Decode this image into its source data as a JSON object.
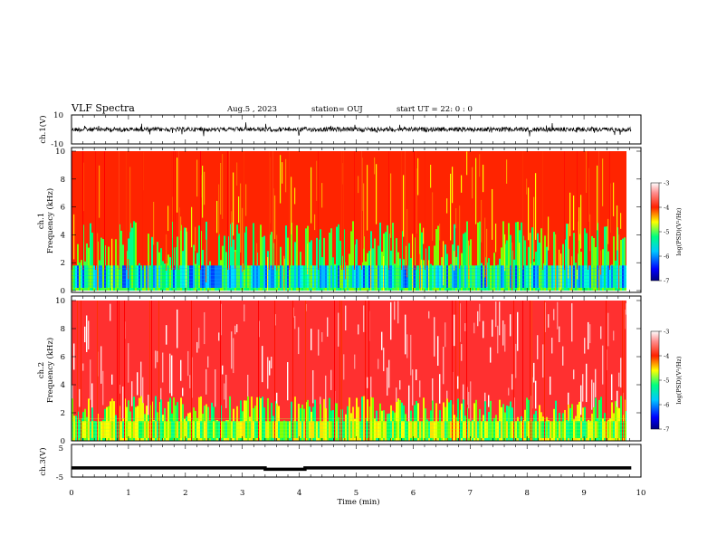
{
  "header": {
    "title": "VLF Spectra",
    "date": "Aug.5 , 2023",
    "station": "station= OUJ",
    "start_ut": "start UT = 22: 0 : 0"
  },
  "chart_data": [
    {
      "type": "line",
      "panel": "ch1-waveform",
      "ylabel": "ch.1(V)",
      "yticks": [
        "10",
        "-10"
      ],
      "ylim": [
        -10,
        10
      ],
      "x_range": [
        0,
        10
      ],
      "colors": {
        "line": "#000000"
      }
    },
    {
      "type": "heatmap",
      "panel": "ch1-spectrogram",
      "ylabel": "ch.1\nFrequency (kHz)",
      "ylabel_lines": [
        "ch.1",
        "Frequency (kHz)"
      ],
      "yticks": [
        "0",
        "2",
        "4",
        "6",
        "8",
        "10"
      ],
      "ylim": [
        0,
        10
      ],
      "x_range": [
        0,
        9.83
      ],
      "colorbar": {
        "label": "log(PSD)(V²/Hz)",
        "ticks": [
          "-3",
          "-4",
          "-5",
          "-6",
          "-7"
        ],
        "range": [
          -7,
          -3
        ]
      }
    },
    {
      "type": "heatmap",
      "panel": "ch2-spectrogram",
      "ylabel": "ch.2\nFrequency (kHz)",
      "ylabel_lines": [
        "ch.2",
        "Frequency (kHz)"
      ],
      "yticks": [
        "0",
        "2",
        "4",
        "6",
        "8",
        "10"
      ],
      "ylim": [
        0,
        10
      ],
      "x_range": [
        0,
        9.83
      ],
      "colorbar": {
        "label": "log(PSD)(V²/Hz)",
        "ticks": [
          "-3",
          "-4",
          "-5",
          "-6",
          "-7"
        ],
        "range": [
          -7,
          -3
        ]
      }
    },
    {
      "type": "line",
      "panel": "ch3-waveform",
      "ylabel": "ch.3(V)",
      "yticks": [
        "5",
        "-5"
      ],
      "ylim": [
        -5,
        5
      ],
      "series": [
        {
          "x": [
            0,
            3.4,
            3.4,
            4.1,
            4.1,
            9.83
          ],
          "y": [
            -2.2,
            -2.2,
            -2.6,
            -2.6,
            -2.2,
            -2.2
          ]
        }
      ],
      "xlabel": "Time (min)",
      "xticks": [
        "0",
        "1",
        "2",
        "3",
        "4",
        "5",
        "6",
        "7",
        "8",
        "9",
        "10"
      ],
      "xlim": [
        0,
        10
      ]
    }
  ]
}
